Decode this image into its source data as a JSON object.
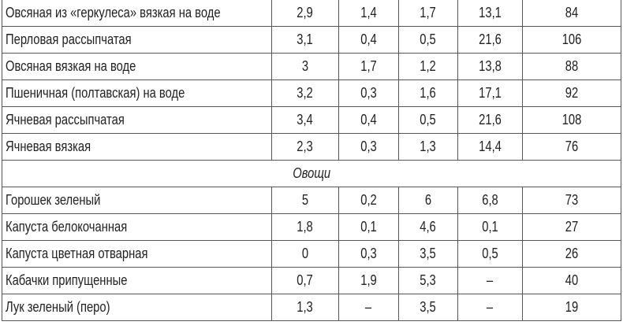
{
  "rows": [
    {
      "type": "item",
      "name": "Овсяная из «геркулеса» вязкая на воде",
      "values": [
        "2,9",
        "1,4",
        "1,7",
        "13,1",
        "84"
      ]
    },
    {
      "type": "item",
      "name": "Перловая рассыпчатая",
      "values": [
        "3,1",
        "0,4",
        "0,5",
        "21,6",
        "106"
      ]
    },
    {
      "type": "item",
      "name": "Овсяная вязкая на воде",
      "values": [
        "3",
        "1,7",
        "1,2",
        "13,8",
        "88"
      ]
    },
    {
      "type": "item",
      "name": "Пшеничная (полтавская) на воде",
      "values": [
        "3,2",
        "0,3",
        "1,6",
        "17,1",
        "92"
      ]
    },
    {
      "type": "item",
      "name": "Ячневая рассыпчатая",
      "values": [
        "3,4",
        "0,4",
        "0,5",
        "21,6",
        "108"
      ]
    },
    {
      "type": "item",
      "name": "Ячневая вязкая",
      "values": [
        "2,3",
        "0,3",
        "1,3",
        "14,4",
        "76"
      ]
    },
    {
      "type": "section",
      "name": "Овощи"
    },
    {
      "type": "item",
      "name": "Горошек зеленый",
      "values": [
        "5",
        "0,2",
        "6",
        "6,8",
        "73"
      ]
    },
    {
      "type": "item",
      "name": "Капуста белокочанная",
      "values": [
        "1,8",
        "0,1",
        "4,6",
        "0,1",
        "27"
      ]
    },
    {
      "type": "item",
      "name": "Капуста цветная отварная",
      "values": [
        "0",
        "0,3",
        "3,5",
        "0,5",
        "26"
      ]
    },
    {
      "type": "item",
      "name": "Кабачки припущенные",
      "values": [
        "0,7",
        "1,9",
        "5,3",
        "–",
        "40"
      ]
    },
    {
      "type": "item",
      "name": "Лук зеленый (перо)",
      "values": [
        "1,3",
        "–",
        "3,5",
        "–",
        "19"
      ]
    }
  ]
}
